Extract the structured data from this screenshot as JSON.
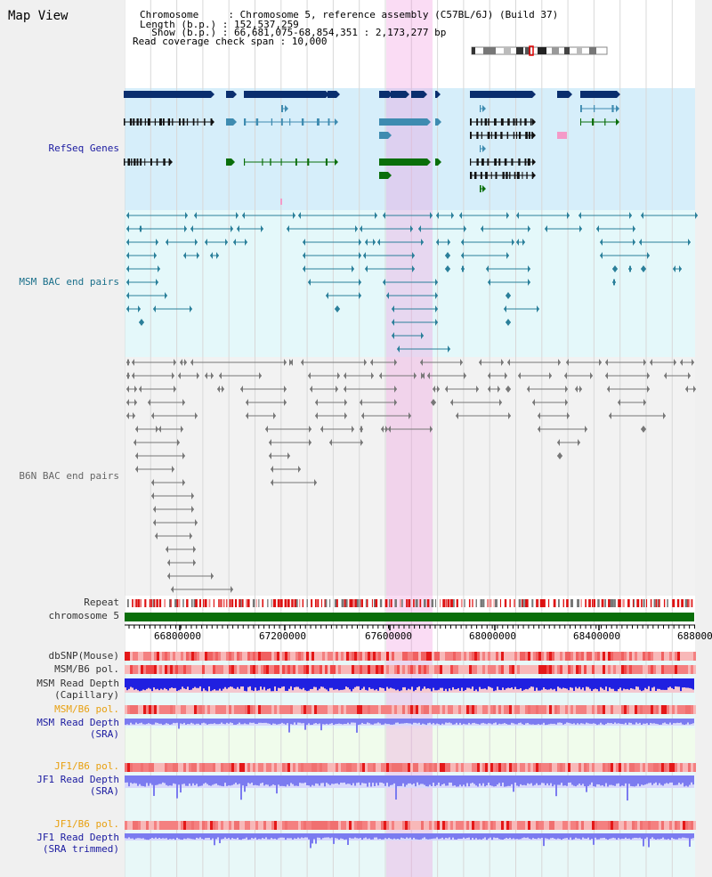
{
  "header": {
    "title": "Map View",
    "chromosome": "Chromosome     : Chromosome 5, reference assembly (C57BL/6J) (Build 37)",
    "length": "Length (b.p.) : 152,537,259",
    "show": "  Show (b.p.) : 66,681,075-68,854,351 : 2,173,277 bp",
    "coverage": "Read coverage check span : 10,000"
  },
  "tracks": {
    "refseq": "RefSeq Genes",
    "msm_bac": "MSM BAC end pairs",
    "b6n_bac": "B6N BAC end pairs",
    "repeat": "Repeat",
    "chromosome": "chromosome 5",
    "dbsnp": "dbSNP(Mouse)",
    "msm_pol": "MSM/B6 pol.",
    "msm_depth_cap_1": "MSM Read Depth",
    "msm_depth_cap_2": "(Capillary)",
    "msm_pol_2": "MSM/B6 pol.",
    "msm_depth_sra_1": "MSM Read Depth",
    "msm_depth_sra_2": "(SRA)",
    "jf1_pol": "JF1/B6 pol.",
    "jf1_depth_1": "JF1 Read Depth",
    "jf1_depth_2": "(SRA)",
    "jf1_pol_2": "JF1/B6 pol.",
    "jf1_trim_1": "JF1 Read Depth",
    "jf1_trim_2": "(SRA trimmed)"
  },
  "axis": {
    "ticks": [
      "66800000",
      "67200000",
      "67600000",
      "68000000",
      "68400000",
      "688000"
    ]
  },
  "colors": {
    "refseq_bg": "#d6eefa",
    "msm_bg": "#e4f8fa",
    "b6n_bg": "#f2f2f2",
    "highlight": "#f8d0f0",
    "gene_dark": "#0a2e6e",
    "gene_mid": "#3e8bb0",
    "gene_green": "#0a6e0a",
    "bac_teal": "#2a7f9a",
    "bac_gray": "#777777",
    "chromosome": "#0a6e0a",
    "depth_blue": "#2020e0",
    "depth_light": "#7b7bf0",
    "pol_red": "#f04040"
  }
}
